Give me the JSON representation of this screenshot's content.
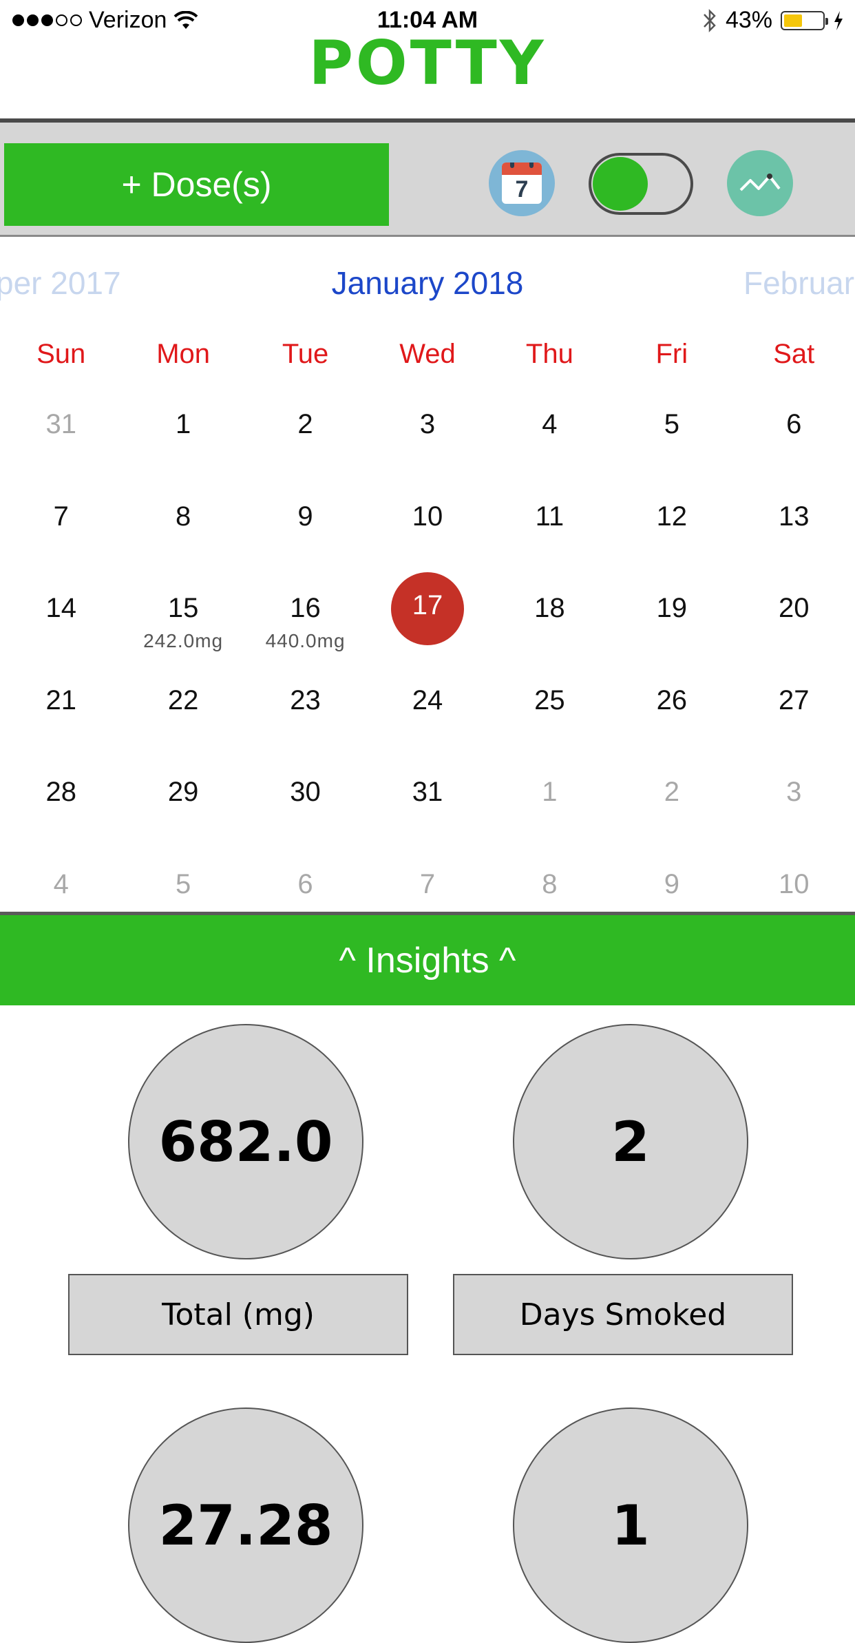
{
  "status_bar": {
    "carrier": "Verizon",
    "time": "11:04 AM",
    "battery": "43%"
  },
  "app": {
    "title": "POTTY"
  },
  "toolbar": {
    "dose_button": "+ Dose(s)",
    "calendar_icon_day": "7",
    "toggle_on": true,
    "icons": [
      "calendar-icon",
      "toggle-switch",
      "trend-chart-icon"
    ]
  },
  "calendar": {
    "prev_month": "per 2017",
    "current_month": "January 2018",
    "next_month": "Februar",
    "weekdays": [
      "Sun",
      "Mon",
      "Tue",
      "Wed",
      "Thu",
      "Fri",
      "Sat"
    ],
    "weeks": [
      [
        {
          "d": "31",
          "other": true
        },
        {
          "d": "1"
        },
        {
          "d": "2"
        },
        {
          "d": "3"
        },
        {
          "d": "4"
        },
        {
          "d": "5"
        },
        {
          "d": "6"
        }
      ],
      [
        {
          "d": "7"
        },
        {
          "d": "8"
        },
        {
          "d": "9"
        },
        {
          "d": "10"
        },
        {
          "d": "11"
        },
        {
          "d": "12"
        },
        {
          "d": "13"
        }
      ],
      [
        {
          "d": "14"
        },
        {
          "d": "15",
          "mg": "242.0mg"
        },
        {
          "d": "16",
          "mg": "440.0mg"
        },
        {
          "d": "17",
          "today": true
        },
        {
          "d": "18"
        },
        {
          "d": "19"
        },
        {
          "d": "20"
        }
      ],
      [
        {
          "d": "21"
        },
        {
          "d": "22"
        },
        {
          "d": "23"
        },
        {
          "d": "24"
        },
        {
          "d": "25"
        },
        {
          "d": "26"
        },
        {
          "d": "27"
        }
      ],
      [
        {
          "d": "28"
        },
        {
          "d": "29"
        },
        {
          "d": "30"
        },
        {
          "d": "31"
        },
        {
          "d": "1",
          "other": true
        },
        {
          "d": "2",
          "other": true
        },
        {
          "d": "3",
          "other": true
        }
      ],
      [
        {
          "d": "4",
          "other": true
        },
        {
          "d": "5",
          "other": true
        },
        {
          "d": "6",
          "other": true
        },
        {
          "d": "7",
          "other": true
        },
        {
          "d": "8",
          "other": true
        },
        {
          "d": "9",
          "other": true
        },
        {
          "d": "10",
          "other": true
        }
      ]
    ]
  },
  "insights": {
    "header": "^ Insights ^",
    "stats": [
      {
        "value": "682.0",
        "label": "Total (mg)"
      },
      {
        "value": "2",
        "label": "Days Smoked"
      },
      {
        "value": "27.28",
        "label": ""
      },
      {
        "value": "1",
        "label": ""
      }
    ]
  },
  "colors": {
    "brand_green": "#2fb923",
    "today_red": "#c53127",
    "weekday_red": "#e0181a",
    "month_blue": "#1c47c9"
  }
}
